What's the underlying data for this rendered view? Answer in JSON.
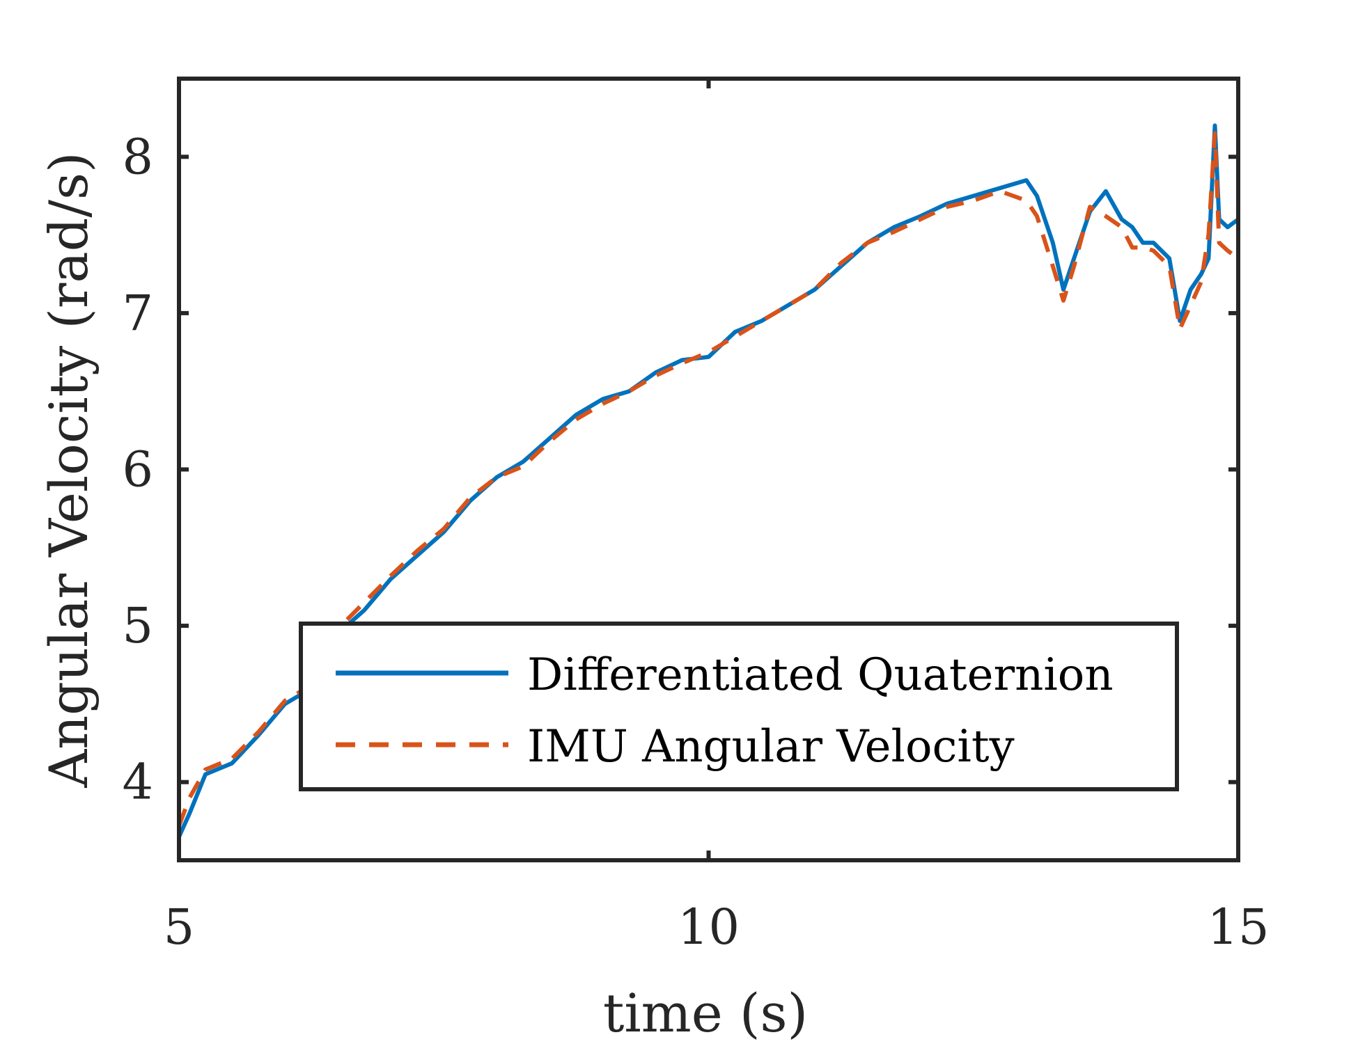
{
  "chart_data": {
    "type": "line",
    "xlabel": "time (s)",
    "ylabel": "Angular Velocity (rad/s)",
    "xlim": [
      5,
      15
    ],
    "ylim": [
      3.5,
      8.5
    ],
    "xticks": [
      5,
      10,
      15
    ],
    "yticks": [
      4,
      5,
      6,
      7,
      8
    ],
    "grid": false,
    "legend_position": "bottom-right",
    "series": [
      {
        "name": "Differentiated Quaternion",
        "color": "#0072BD",
        "style": "solid",
        "x": [
          5.0,
          5.1,
          5.25,
          5.5,
          5.75,
          6.0,
          6.25,
          6.5,
          6.75,
          7.0,
          7.25,
          7.5,
          7.75,
          8.0,
          8.25,
          8.5,
          8.75,
          9.0,
          9.25,
          9.5,
          9.75,
          10.0,
          10.25,
          10.5,
          10.75,
          11.0,
          11.25,
          11.5,
          11.75,
          12.0,
          12.25,
          12.5,
          12.75,
          13.0,
          13.1,
          13.25,
          13.35,
          13.45,
          13.6,
          13.75,
          13.9,
          14.0,
          14.1,
          14.2,
          14.35,
          14.45,
          14.55,
          14.65,
          14.72,
          14.78,
          14.82,
          14.9,
          15.0
        ],
        "y": [
          3.65,
          3.8,
          4.05,
          4.12,
          4.3,
          4.5,
          4.6,
          4.95,
          5.1,
          5.3,
          5.45,
          5.6,
          5.8,
          5.95,
          6.05,
          6.2,
          6.35,
          6.45,
          6.5,
          6.62,
          6.7,
          6.72,
          6.88,
          6.95,
          7.05,
          7.15,
          7.3,
          7.45,
          7.55,
          7.62,
          7.7,
          7.75,
          7.8,
          7.85,
          7.75,
          7.45,
          7.15,
          7.35,
          7.65,
          7.78,
          7.6,
          7.55,
          7.45,
          7.45,
          7.35,
          6.95,
          7.15,
          7.25,
          7.35,
          8.2,
          7.6,
          7.55,
          7.6
        ]
      },
      {
        "name": "IMU Angular Velocity",
        "color": "#D95319",
        "style": "dashed",
        "x": [
          5.0,
          5.1,
          5.25,
          5.5,
          5.75,
          6.0,
          6.25,
          6.5,
          6.75,
          7.0,
          7.25,
          7.5,
          7.75,
          8.0,
          8.25,
          8.5,
          8.75,
          9.0,
          9.25,
          9.5,
          9.75,
          10.0,
          10.25,
          10.5,
          10.75,
          11.0,
          11.25,
          11.5,
          11.75,
          12.0,
          12.25,
          12.5,
          12.75,
          13.0,
          13.1,
          13.25,
          13.35,
          13.45,
          13.6,
          13.75,
          13.9,
          14.0,
          14.1,
          14.2,
          14.35,
          14.45,
          14.55,
          14.65,
          14.72,
          14.78,
          14.82,
          14.9,
          15.0
        ],
        "y": [
          3.72,
          3.9,
          4.08,
          4.15,
          4.32,
          4.52,
          4.62,
          4.98,
          5.15,
          5.32,
          5.48,
          5.62,
          5.82,
          5.95,
          6.02,
          6.18,
          6.32,
          6.42,
          6.5,
          6.6,
          6.68,
          6.75,
          6.85,
          6.95,
          7.05,
          7.15,
          7.32,
          7.45,
          7.52,
          7.6,
          7.68,
          7.72,
          7.78,
          7.72,
          7.62,
          7.3,
          7.08,
          7.3,
          7.68,
          7.62,
          7.55,
          7.42,
          7.42,
          7.4,
          7.3,
          6.9,
          7.05,
          7.2,
          7.5,
          8.15,
          7.45,
          7.4,
          7.35
        ]
      }
    ]
  }
}
